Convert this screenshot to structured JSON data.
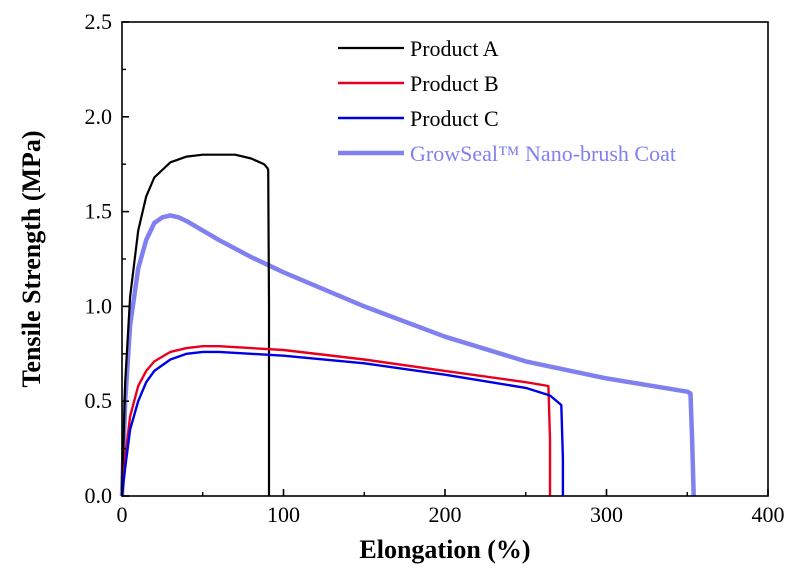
{
  "chart_data": {
    "type": "line",
    "xlabel": "Elongation (%)",
    "ylabel": "Tensile Strength (MPa)",
    "xlim": [
      0,
      400
    ],
    "ylim": [
      0,
      2.5
    ],
    "xticks": [
      "0",
      "100",
      "200",
      "300",
      "400"
    ],
    "yticks": [
      "0.0",
      "0.5",
      "1.0",
      "1.5",
      "2.0",
      "2.5"
    ],
    "grid": false,
    "legend_position": "top-right",
    "series": [
      {
        "name": "Product A",
        "color": "#000000",
        "x": [
          0,
          2,
          5,
          10,
          15,
          20,
          30,
          40,
          50,
          60,
          70,
          80,
          88,
          89,
          90,
          90.5,
          91,
          91
        ],
        "y": [
          0,
          0.6,
          1.05,
          1.4,
          1.58,
          1.68,
          1.76,
          1.79,
          1.8,
          1.8,
          1.8,
          1.78,
          1.75,
          1.74,
          1.73,
          1.72,
          1.0,
          0
        ]
      },
      {
        "name": "Product B",
        "color": "#e8001c",
        "x": [
          0,
          2,
          5,
          10,
          15,
          20,
          30,
          40,
          50,
          60,
          80,
          100,
          150,
          200,
          250,
          264,
          265,
          265
        ],
        "y": [
          0,
          0.2,
          0.42,
          0.58,
          0.66,
          0.71,
          0.76,
          0.78,
          0.79,
          0.79,
          0.78,
          0.77,
          0.72,
          0.66,
          0.6,
          0.58,
          0.3,
          0
        ]
      },
      {
        "name": "Product C",
        "color": "#0000e6",
        "x": [
          0,
          2,
          5,
          10,
          15,
          20,
          30,
          40,
          50,
          60,
          80,
          100,
          150,
          200,
          250,
          265,
          272,
          273,
          273
        ],
        "y": [
          0,
          0.15,
          0.35,
          0.5,
          0.6,
          0.66,
          0.72,
          0.75,
          0.76,
          0.76,
          0.75,
          0.74,
          0.7,
          0.64,
          0.57,
          0.53,
          0.48,
          0.2,
          0
        ]
      },
      {
        "name": "GrowSeal™ Nano-brush Coat",
        "color": "#8080f0",
        "x": [
          0,
          2,
          5,
          10,
          15,
          20,
          25,
          30,
          35,
          40,
          50,
          60,
          80,
          100,
          150,
          200,
          250,
          300,
          350,
          352,
          353,
          354
        ],
        "y": [
          0,
          0.5,
          0.9,
          1.2,
          1.35,
          1.44,
          1.47,
          1.48,
          1.47,
          1.45,
          1.4,
          1.35,
          1.26,
          1.18,
          1.0,
          0.84,
          0.71,
          0.62,
          0.55,
          0.54,
          0.3,
          0
        ]
      }
    ]
  }
}
